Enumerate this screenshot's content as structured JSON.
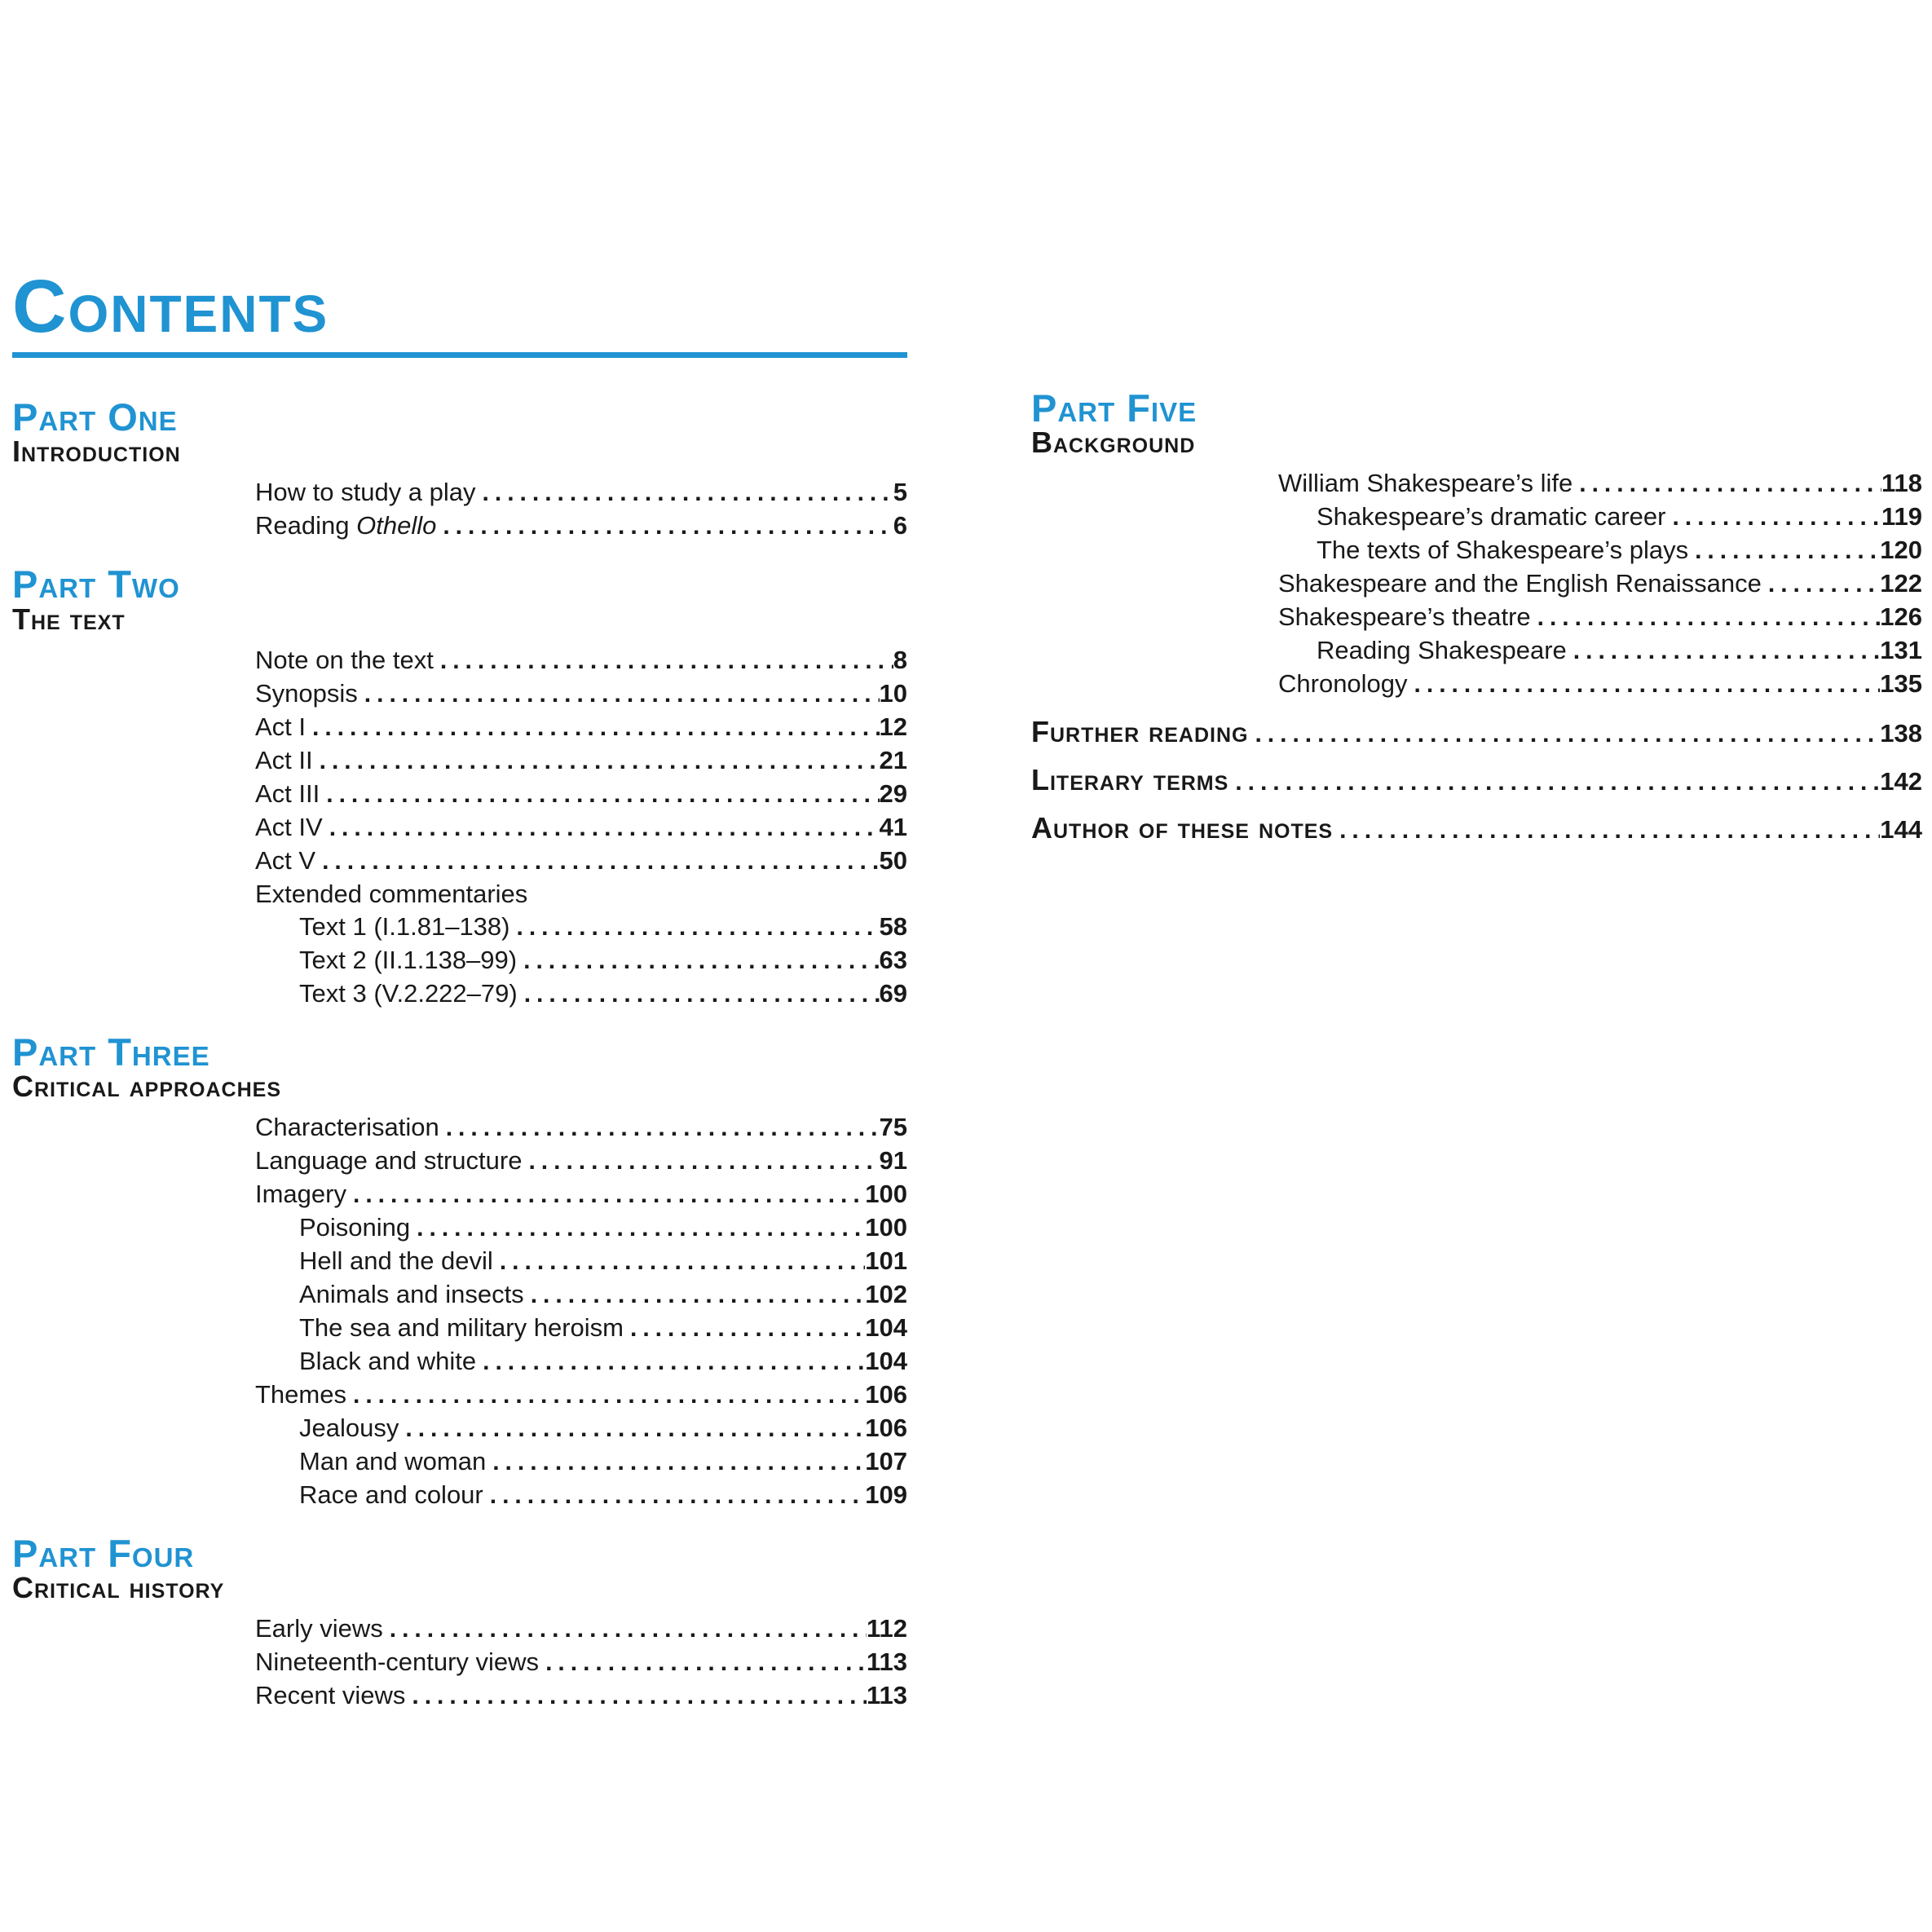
{
  "title": "Contents",
  "accent_color": "#2093d2",
  "left": {
    "sections": [
      {
        "part": "Part One",
        "subtitle": "Introduction",
        "entries": [
          {
            "label": "How to study a play",
            "page": "5"
          },
          {
            "label": "Reading",
            "italic": "Othello",
            "page": "6"
          }
        ]
      },
      {
        "part": "Part Two",
        "subtitle": "The text",
        "entries": [
          {
            "label": "Note on the text",
            "page": "8"
          },
          {
            "label": "Synopsis",
            "page": "10"
          },
          {
            "label": "Act I",
            "page": "12"
          },
          {
            "label": "Act II",
            "page": "21"
          },
          {
            "label": "Act III",
            "page": "29"
          },
          {
            "label": "Act IV",
            "page": "41"
          },
          {
            "label": "Act V",
            "page": "50"
          },
          {
            "label": "Extended commentaries",
            "page": ""
          },
          {
            "label": "Text 1 (I.1.81–138)",
            "page": "58"
          },
          {
            "label": "Text 2 (II.1.138–99)",
            "page": "63"
          },
          {
            "label": "Text 3 (V.2.222–79)",
            "page": "69"
          }
        ]
      },
      {
        "part": "Part Three",
        "subtitle": "Critical approaches",
        "entries": [
          {
            "label": "Characterisation",
            "page": "75"
          },
          {
            "label": "Language and structure",
            "page": "91"
          },
          {
            "label": "Imagery",
            "page": "100"
          },
          {
            "label": "Poisoning",
            "page": "100"
          },
          {
            "label": "Hell and the devil",
            "page": "101"
          },
          {
            "label": "Animals and insects",
            "page": "102"
          },
          {
            "label": "The sea and military heroism",
            "page": "104"
          },
          {
            "label": "Black and white",
            "page": "104"
          },
          {
            "label": "Themes",
            "page": "106"
          },
          {
            "label": "Jealousy",
            "page": "106"
          },
          {
            "label": "Man and woman",
            "page": "107"
          },
          {
            "label": "Race and colour",
            "page": "109"
          }
        ]
      },
      {
        "part": "Part Four",
        "subtitle": "Critical history",
        "entries": [
          {
            "label": "Early views",
            "page": "112"
          },
          {
            "label": "Nineteenth-century views",
            "page": "113"
          },
          {
            "label": "Recent views",
            "page": "113"
          }
        ]
      }
    ]
  },
  "right": {
    "sections": [
      {
        "part": "Part Five",
        "subtitle": "Background",
        "entries": [
          {
            "label": "William Shakespeare’s life",
            "page": "118"
          },
          {
            "label": "Shakespeare’s dramatic career",
            "page": "119"
          },
          {
            "label": "The texts of Shakespeare’s plays",
            "page": "120"
          },
          {
            "label": "Shakespeare and the English Renaissance",
            "page": "122"
          },
          {
            "label": "Shakespeare’s theatre",
            "page": "126"
          },
          {
            "label": "Reading Shakespeare",
            "page": "131"
          },
          {
            "label": "Chronology",
            "page": "135"
          }
        ]
      }
    ],
    "standalone": [
      {
        "label": "Further reading",
        "page": "138"
      },
      {
        "label": "Literary terms",
        "page": "142"
      },
      {
        "label": "Author of these notes",
        "page": "144"
      }
    ]
  }
}
